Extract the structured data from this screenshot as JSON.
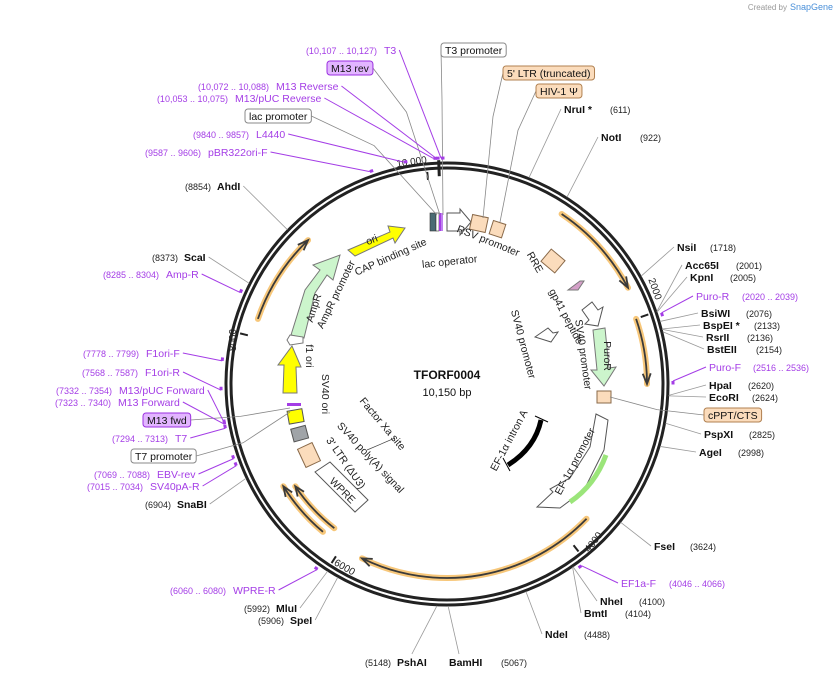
{
  "logo": {
    "created_by": "Created by",
    "brand": "SnapGene"
  },
  "map": {
    "name": "TFORF0004",
    "length_label": "10,150 bp",
    "length_bp": 10150
  },
  "ticks": [
    {
      "bp": 2000,
      "label": "2000"
    },
    {
      "bp": 4000,
      "label": "4000"
    },
    {
      "bp": 6000,
      "label": "6000"
    },
    {
      "bp": 8000,
      "label": "8000"
    },
    {
      "bp": 10000,
      "label": "10,000"
    }
  ],
  "enzymes": [
    {
      "name": "NruI *",
      "pos": 611,
      "pos_label": "(611)"
    },
    {
      "name": "NotI",
      "pos": 922,
      "pos_label": "(922)"
    },
    {
      "name": "NsiI",
      "pos": 1718,
      "pos_label": "(1718)"
    },
    {
      "name": "Acc65I",
      "pos": 2001,
      "pos_label": "(2001)"
    },
    {
      "name": "KpnI",
      "pos": 2005,
      "pos_label": "(2005)"
    },
    {
      "name": "BsiWI",
      "pos": 2076,
      "pos_label": "(2076)"
    },
    {
      "name": "BspEI *",
      "pos": 2133,
      "pos_label": "(2133)"
    },
    {
      "name": "RsrII",
      "pos": 2136,
      "pos_label": "(2136)"
    },
    {
      "name": "BstEII",
      "pos": 2154,
      "pos_label": "(2154)"
    },
    {
      "name": "HpaI",
      "pos": 2620,
      "pos_label": "(2620)"
    },
    {
      "name": "EcoRI",
      "pos": 2624,
      "pos_label": "(2624)"
    },
    {
      "name": "PspXI",
      "pos": 2825,
      "pos_label": "(2825)"
    },
    {
      "name": "AgeI",
      "pos": 2998,
      "pos_label": "(2998)"
    },
    {
      "name": "FseI",
      "pos": 3624,
      "pos_label": "(3624)"
    },
    {
      "name": "NheI",
      "pos": 4100,
      "pos_label": "(4100)"
    },
    {
      "name": "BmtI",
      "pos": 4104,
      "pos_label": "(4104)"
    },
    {
      "name": "NdeI",
      "pos": 4488,
      "pos_label": "(4488)"
    },
    {
      "name": "BamHI",
      "pos": 5067,
      "pos_label": "(5067)"
    },
    {
      "name": "PshAI",
      "pos": 5148,
      "pos_label": "(5148)"
    },
    {
      "name": "SpeI",
      "pos": 5906,
      "pos_label": "(5906)"
    },
    {
      "name": "MluI",
      "pos": 5992,
      "pos_label": "(5992)"
    },
    {
      "name": "SnaBI",
      "pos": 6904,
      "pos_label": "(6904)"
    },
    {
      "name": "ScaI",
      "pos": 8373,
      "pos_label": "(8373)"
    },
    {
      "name": "AhdI",
      "pos": 8854,
      "pos_label": "(8854)"
    }
  ],
  "primers": [
    {
      "name": "T3",
      "start": 10107,
      "range_label": "(10,107 .. 10,127)"
    },
    {
      "name": "M13 Reverse",
      "start": 10072,
      "range_label": "(10,072 .. 10,088)"
    },
    {
      "name": "M13/pUC Reverse",
      "start": 10053,
      "range_label": "(10,053 .. 10,075)"
    },
    {
      "name": "L4440",
      "start": 9840,
      "range_label": "(9840 .. 9857)"
    },
    {
      "name": "pBR322ori-F",
      "start": 9587,
      "range_label": "(9587 .. 9606)"
    },
    {
      "name": "Amp-R",
      "start": 8285,
      "range_label": "(8285 .. 8304)"
    },
    {
      "name": "F1ori-F",
      "start": 7778,
      "range_label": "(7778 .. 7799)"
    },
    {
      "name": "F1ori-R",
      "start": 7568,
      "range_label": "(7568 .. 7587)"
    },
    {
      "name": "M13/pUC Forward",
      "start": 7332,
      "range_label": "(7332 .. 7354)"
    },
    {
      "name": "M13 Forward",
      "start": 7323,
      "range_label": "(7323 .. 7340)"
    },
    {
      "name": "T7",
      "start": 7294,
      "range_label": "(7294 .. 7313)"
    },
    {
      "name": "EBV-rev",
      "start": 7069,
      "range_label": "(7069 .. 7088)"
    },
    {
      "name": "SV40pA-R",
      "start": 7015,
      "range_label": "(7015 .. 7034)"
    },
    {
      "name": "WPRE-R",
      "start": 6060,
      "range_label": "(6060 .. 6080)"
    },
    {
      "name": "EF1a-F",
      "start": 4046,
      "range_label": "(4046 .. 4066)"
    },
    {
      "name": "Puro-F",
      "start": 2516,
      "range_label": "(2516 .. 2536)"
    },
    {
      "name": "Puro-R",
      "start": 2020,
      "range_label": "(2020 .. 2039)"
    }
  ],
  "callouts": [
    {
      "label": "lac promoter",
      "style": "plain"
    },
    {
      "label": "M13 rev",
      "style": "primer"
    },
    {
      "label": "M13 fwd",
      "style": "primer"
    },
    {
      "label": "T7 promoter",
      "style": "plain"
    },
    {
      "label": "T3 promoter",
      "style": "plain"
    },
    {
      "label": "5' LTR (truncated)",
      "style": "ltr"
    },
    {
      "label": "HIV-1 Ψ",
      "style": "ltr"
    },
    {
      "label": "cPPT/CTS",
      "style": "ltr"
    }
  ],
  "features": {
    "cap": "CAP binding site",
    "lacop": "lac operator",
    "rsv": "RSV promoter",
    "ori": "ori",
    "rre": "RRE",
    "gp41": "gp41 peptide",
    "sv40p_outer": "SV40 promoter",
    "sv40p_inner": "SV40 promoter",
    "puror": "PuroR",
    "ef1p": "EF-1α promoter",
    "ef1intron": "EF-1α intron A",
    "factorxa": "Factor Xa site",
    "sv40pa": "SV40 poly(A) signal",
    "ltr3": "3' LTR (ΔU3)",
    "wpre": "WPRE",
    "sv40ori": "SV40 ori",
    "f1ori": "f1 ori",
    "ampr": "AmpR",
    "amprp": "AmpR promoter"
  },
  "colors": {
    "primer": "#a43de6",
    "orf": "#f7c77a",
    "ori": "#ffff00",
    "ampr": "#ccf5cc",
    "ltr": "#fbdcbc"
  }
}
